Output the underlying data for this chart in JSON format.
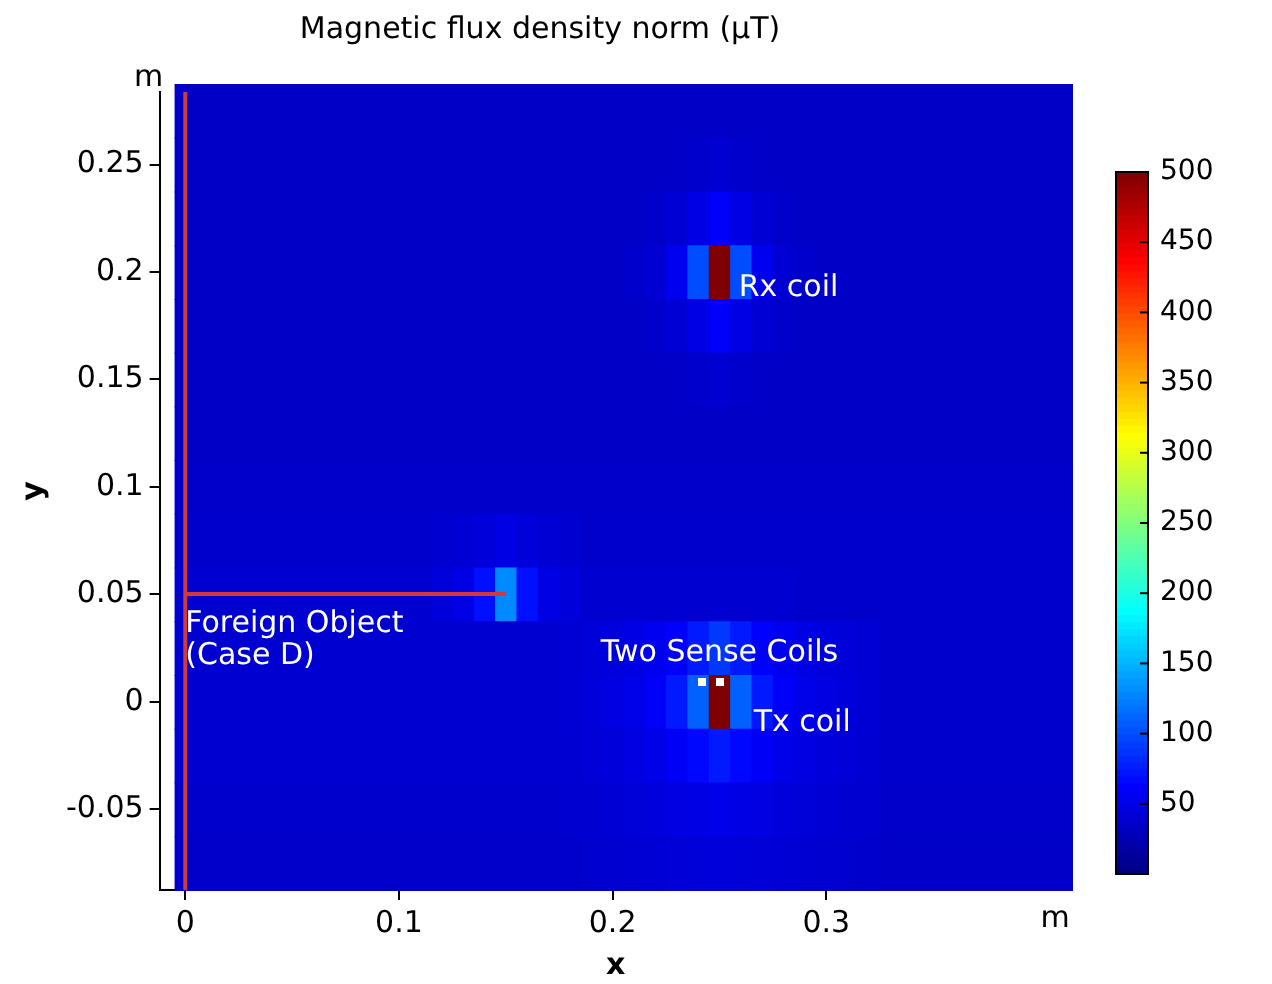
{
  "chart_data": {
    "type": "heatmap",
    "title": "Magnetic flux density norm (μT)",
    "xlabel": "x",
    "ylabel": "y",
    "categories": [
      "0",
      null,
      null,
      null,
      null,
      null,
      null,
      null,
      null,
      null,
      "0.1",
      null,
      null,
      null,
      null,
      null,
      null,
      null,
      null,
      null,
      "0.2",
      null,
      null,
      null,
      null,
      null,
      null,
      null,
      null,
      null,
      "0.3",
      null,
      null,
      null,
      null,
      null,
      null,
      null,
      null,
      null,
      null,
      null
    ],
    "y_categories": [
      null,
      "0.25",
      null,
      "0.2",
      null,
      "0.15",
      null,
      "0.1",
      null,
      "0.05",
      null,
      "0",
      null,
      "-0.05",
      null
    ],
    "clim": [
      0,
      500
    ],
    "cticks": [
      50,
      100,
      150,
      200,
      250,
      300,
      350,
      400,
      450,
      500
    ],
    "cells": [
      [
        35,
        35,
        35,
        35,
        35,
        35,
        35,
        35,
        35,
        35,
        35,
        35,
        35,
        35,
        35,
        35,
        35,
        35,
        35,
        35,
        35,
        35,
        35,
        35,
        35,
        35,
        35,
        35,
        35,
        35,
        35,
        35,
        35,
        35,
        35,
        35,
        35,
        35,
        35,
        35,
        35,
        35
      ],
      [
        35,
        35,
        35,
        35,
        35,
        35,
        35,
        35,
        35,
        35,
        35,
        35,
        35,
        35,
        35,
        35,
        35,
        35,
        35,
        35,
        35,
        35,
        35,
        36,
        38,
        40,
        38,
        36,
        35,
        35,
        35,
        35,
        35,
        35,
        35,
        35,
        35,
        35,
        35,
        35,
        35,
        35
      ],
      [
        35,
        35,
        35,
        35,
        35,
        35,
        35,
        35,
        35,
        35,
        35,
        35,
        35,
        35,
        35,
        35,
        35,
        35,
        35,
        35,
        35,
        35,
        38,
        42,
        50,
        60,
        50,
        42,
        38,
        35,
        35,
        35,
        35,
        35,
        35,
        35,
        35,
        35,
        35,
        35,
        35,
        35
      ],
      [
        35,
        35,
        35,
        35,
        35,
        35,
        35,
        35,
        35,
        35,
        35,
        35,
        35,
        35,
        35,
        35,
        35,
        35,
        35,
        35,
        35,
        38,
        42,
        55,
        100,
        500,
        100,
        55,
        42,
        38,
        35,
        35,
        35,
        35,
        35,
        35,
        35,
        35,
        35,
        35,
        35,
        35
      ],
      [
        35,
        35,
        35,
        35,
        35,
        35,
        35,
        35,
        35,
        35,
        35,
        35,
        35,
        35,
        35,
        35,
        35,
        35,
        35,
        35,
        35,
        35,
        38,
        42,
        50,
        60,
        50,
        42,
        38,
        35,
        35,
        35,
        35,
        35,
        35,
        35,
        35,
        35,
        35,
        35,
        35,
        35
      ],
      [
        35,
        35,
        35,
        35,
        35,
        35,
        35,
        35,
        35,
        35,
        35,
        35,
        35,
        35,
        35,
        35,
        35,
        35,
        35,
        35,
        35,
        35,
        35,
        36,
        38,
        40,
        38,
        36,
        35,
        35,
        35,
        35,
        35,
        35,
        35,
        35,
        35,
        35,
        35,
        35,
        35,
        35
      ],
      [
        35,
        35,
        35,
        35,
        35,
        35,
        35,
        35,
        35,
        35,
        35,
        35,
        35,
        35,
        35,
        35,
        35,
        35,
        35,
        35,
        35,
        35,
        35,
        35,
        35,
        35,
        35,
        35,
        35,
        35,
        35,
        35,
        35,
        35,
        35,
        35,
        35,
        35,
        35,
        35,
        35,
        35
      ],
      [
        37,
        37,
        37,
        37,
        37,
        37,
        37,
        37,
        37,
        37,
        37,
        37,
        37,
        37,
        37,
        37,
        37,
        37,
        37,
        37,
        37,
        37,
        37,
        37,
        37,
        37,
        37,
        37,
        37,
        37,
        37,
        37,
        37,
        37,
        37,
        37,
        37,
        37,
        37,
        37,
        37,
        37
      ],
      [
        38,
        38,
        38,
        38,
        38,
        38,
        38,
        38,
        38,
        38,
        38,
        38,
        40,
        42,
        45,
        50,
        45,
        42,
        40,
        38,
        38,
        38,
        38,
        38,
        38,
        38,
        38,
        38,
        38,
        38,
        38,
        38,
        38,
        38,
        38,
        38,
        38,
        38,
        38,
        38,
        38,
        38
      ],
      [
        40,
        40,
        40,
        40,
        40,
        40,
        40,
        40,
        40,
        40,
        40,
        40,
        45,
        50,
        70,
        130,
        70,
        50,
        45,
        40,
        40,
        40,
        40,
        40,
        40,
        40,
        40,
        40,
        40,
        38,
        38,
        38,
        38,
        38,
        38,
        38,
        38,
        38,
        38,
        38,
        38,
        38
      ],
      [
        40,
        40,
        40,
        40,
        40,
        40,
        40,
        40,
        40,
        40,
        40,
        40,
        40,
        40,
        40,
        40,
        40,
        40,
        42,
        44,
        46,
        50,
        55,
        62,
        75,
        90,
        75,
        62,
        55,
        50,
        46,
        44,
        42,
        38,
        38,
        38,
        38,
        38,
        38,
        38,
        38,
        38
      ],
      [
        40,
        40,
        40,
        40,
        40,
        40,
        40,
        40,
        40,
        40,
        40,
        40,
        40,
        40,
        40,
        40,
        40,
        40,
        42,
        45,
        48,
        52,
        60,
        75,
        110,
        500,
        110,
        75,
        60,
        52,
        48,
        45,
        42,
        38,
        38,
        38,
        38,
        38,
        38,
        38,
        38,
        38
      ],
      [
        40,
        40,
        40,
        40,
        40,
        40,
        40,
        40,
        40,
        40,
        40,
        40,
        40,
        40,
        40,
        40,
        40,
        40,
        41,
        43,
        45,
        48,
        52,
        58,
        66,
        75,
        66,
        58,
        52,
        48,
        45,
        43,
        41,
        38,
        38,
        38,
        38,
        38,
        38,
        38,
        38,
        38
      ],
      [
        38,
        38,
        38,
        38,
        38,
        38,
        38,
        38,
        38,
        38,
        38,
        38,
        38,
        38,
        38,
        38,
        38,
        38,
        39,
        40,
        42,
        44,
        46,
        48,
        50,
        52,
        50,
        48,
        46,
        44,
        42,
        40,
        39,
        37,
        37,
        37,
        37,
        37,
        37,
        37,
        37,
        37
      ],
      [
        37,
        37,
        37,
        37,
        37,
        37,
        37,
        37,
        37,
        37,
        37,
        37,
        37,
        37,
        37,
        37,
        37,
        37,
        38,
        39,
        40,
        41,
        42,
        43,
        44,
        45,
        44,
        43,
        42,
        41,
        40,
        39,
        38,
        36,
        36,
        36,
        36,
        36,
        36,
        36,
        36,
        36
      ]
    ],
    "ref_lines": [
      {
        "axis": "x",
        "value": "0",
        "color": "#d03a3a"
      }
    ],
    "annotations": [
      "Rx coil",
      "Tx coil",
      "Two Sense Coils",
      "Foreign Object\n(Case D)",
      "m",
      "m"
    ]
  }
}
